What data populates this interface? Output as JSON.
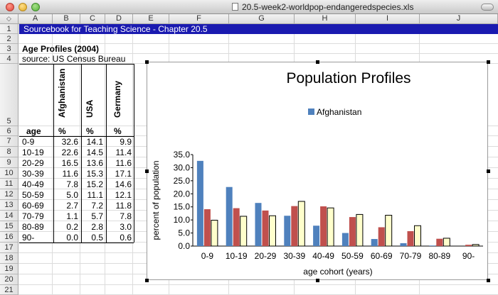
{
  "window": {
    "title": "20.5-week2-worldpop-endangeredspecies.xls"
  },
  "columns": [
    "A",
    "B",
    "C",
    "D",
    "E",
    "F",
    "G",
    "H",
    "I",
    "J"
  ],
  "corner_symbol": "◇",
  "rows": [
    "1",
    "2",
    "3",
    "4",
    "5",
    "6",
    "7",
    "8",
    "9",
    "10",
    "11",
    "12",
    "13",
    "14",
    "15",
    "16",
    "17",
    "18",
    "19",
    "20",
    "21"
  ],
  "sheet": {
    "banner": "Sourcebook for Teaching Science - Chapter 20.5",
    "heading": "Age Profiles (2004)",
    "source": "source:  US Census Bureau",
    "country_headers": [
      "Afghanistan",
      "USA",
      "Germany"
    ],
    "age_header": "age",
    "unit_headers": [
      "%",
      "%",
      "%"
    ],
    "table": [
      [
        "0-9",
        "32.6",
        "14.1",
        "9.9"
      ],
      [
        "10-19",
        "22.6",
        "14.5",
        "11.4"
      ],
      [
        "20-29",
        "16.5",
        "13.6",
        "11.6"
      ],
      [
        "30-39",
        "11.6",
        "15.3",
        "17.1"
      ],
      [
        "40-49",
        "7.8",
        "15.2",
        "14.6"
      ],
      [
        "50-59",
        "5.0",
        "11.1",
        "12.1"
      ],
      [
        "60-69",
        "2.7",
        "7.2",
        "11.8"
      ],
      [
        "70-79",
        "1.1",
        "5.7",
        "7.8"
      ],
      [
        "80-89",
        "0.2",
        "2.8",
        "3.0"
      ],
      [
        "90-",
        "0.0",
        "0.5",
        "0.6"
      ]
    ]
  },
  "chart_data": {
    "type": "bar",
    "title": "Population Profiles",
    "xlabel": "age cohort (years)",
    "ylabel": "percent of population",
    "categories": [
      "0-9",
      "10-19",
      "20-29",
      "30-39",
      "40-49",
      "50-59",
      "60-69",
      "70-79",
      "80-89",
      "90-"
    ],
    "series": [
      {
        "name": "Afghanistan",
        "color": "#4f81bd",
        "values": [
          32.6,
          22.6,
          16.5,
          11.6,
          7.8,
          5.0,
          2.7,
          1.1,
          0.2,
          0.0
        ]
      },
      {
        "name": "",
        "color": "#c0504d",
        "values": [
          14.1,
          14.5,
          13.6,
          15.3,
          15.2,
          11.1,
          7.2,
          5.7,
          2.8,
          0.5
        ]
      },
      {
        "name": "",
        "color": "#ffffcc",
        "values": [
          9.9,
          11.4,
          11.6,
          17.1,
          14.6,
          12.1,
          11.8,
          7.8,
          3.0,
          0.6
        ]
      }
    ],
    "legend": [
      "Afghanistan"
    ],
    "legend_position": "top-right",
    "ylim": [
      0,
      35
    ],
    "yticks": [
      "0.0",
      "5.0",
      "10.0",
      "15.0",
      "20.0",
      "25.0",
      "30.0",
      "35.0"
    ],
    "grid": false
  }
}
